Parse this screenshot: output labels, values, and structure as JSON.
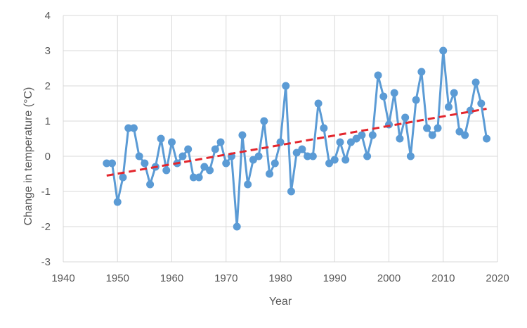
{
  "chart_data": {
    "type": "line",
    "title": "",
    "xlabel": "Year",
    "ylabel": "Change in temperature (°C)",
    "xlim": [
      1940,
      2020
    ],
    "ylim": [
      -3,
      4
    ],
    "xticks": [
      1940,
      1950,
      1960,
      1970,
      1980,
      1990,
      2000,
      2010,
      2020
    ],
    "yticks": [
      -3,
      -2,
      -1,
      0,
      1,
      2,
      3,
      4
    ],
    "grid": true,
    "legend": "none",
    "series": [
      {
        "color": "#5b9bd5",
        "style": "solid-with-markers",
        "x": [
          1948,
          1949,
          1950,
          1951,
          1952,
          1953,
          1954,
          1955,
          1956,
          1957,
          1958,
          1959,
          1960,
          1961,
          1962,
          1963,
          1964,
          1965,
          1966,
          1967,
          1968,
          1969,
          1970,
          1971,
          1972,
          1973,
          1974,
          1975,
          1976,
          1977,
          1978,
          1979,
          1980,
          1981,
          1982,
          1983,
          1984,
          1985,
          1986,
          1987,
          1988,
          1989,
          1990,
          1991,
          1992,
          1993,
          1994,
          1995,
          1996,
          1997,
          1998,
          1999,
          2000,
          2001,
          2002,
          2003,
          2004,
          2005,
          2006,
          2007,
          2008,
          2009,
          2010,
          2011,
          2012,
          2013,
          2014,
          2015,
          2016,
          2017,
          2018
        ],
        "y": [
          -0.2,
          -0.2,
          -1.3,
          -0.6,
          0.8,
          0.8,
          0.0,
          -0.2,
          -0.8,
          -0.3,
          0.5,
          -0.4,
          0.4,
          -0.2,
          0.0,
          0.2,
          -0.6,
          -0.6,
          -0.3,
          -0.4,
          0.2,
          0.4,
          -0.2,
          0.0,
          -2.0,
          0.6,
          -0.8,
          -0.1,
          0.0,
          1.0,
          -0.5,
          -0.2,
          0.4,
          2.0,
          -1.0,
          0.1,
          0.2,
          0.0,
          0.0,
          1.5,
          0.8,
          -0.2,
          -0.1,
          0.4,
          -0.1,
          0.4,
          0.5,
          0.6,
          0.0,
          0.6,
          2.3,
          1.7,
          0.9,
          1.8,
          0.5,
          1.1,
          0.0,
          1.6,
          2.4,
          0.8,
          0.6,
          0.8,
          3.0,
          1.4,
          1.8,
          0.7,
          0.6,
          1.3,
          2.1,
          1.5,
          0.5
        ]
      },
      {
        "color": "#e3262d",
        "style": "dashed-trendline",
        "x": [
          1948,
          2018
        ],
        "y": [
          -0.55,
          1.35
        ]
      }
    ]
  }
}
